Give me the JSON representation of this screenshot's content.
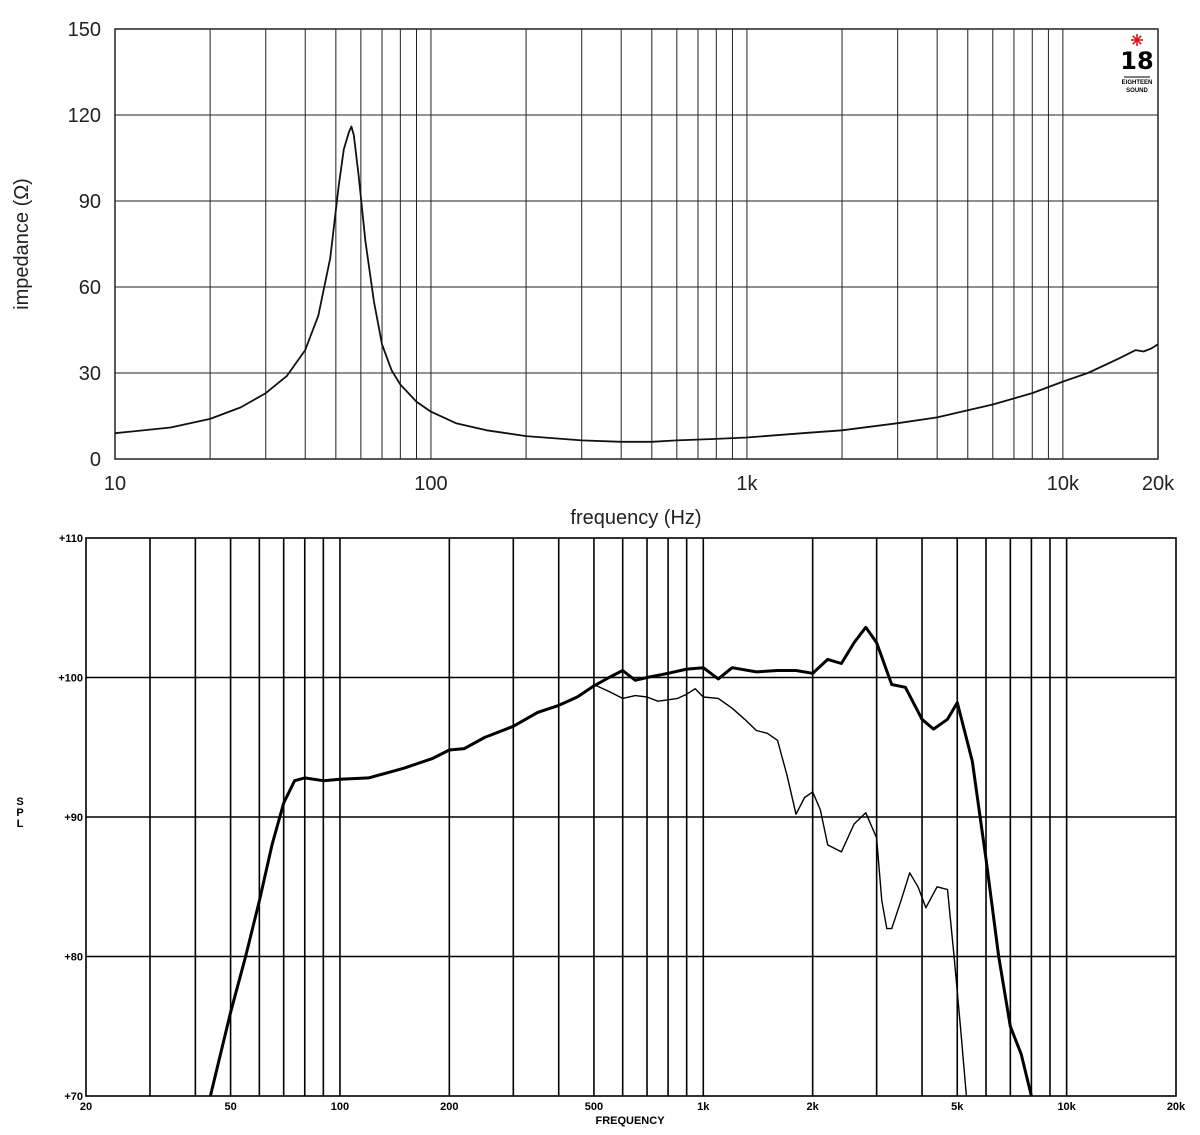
{
  "logo": {
    "text": "18",
    "sub1": "EIGHTEEN",
    "sub2": "SOUND",
    "star_color": "#e0141e"
  },
  "chart_data": [
    {
      "type": "line",
      "xscale": "log",
      "xlabel": "frequency (Hz)",
      "ylabel": "impedance (Ω)",
      "xlim": [
        10,
        20000
      ],
      "ylim": [
        0,
        150
      ],
      "grid": true,
      "xticks": [
        10,
        100,
        1000,
        10000,
        20000
      ],
      "xtick_labels": [
        "10",
        "100",
        "1k",
        "10k",
        "20k"
      ],
      "yticks": [
        0,
        30,
        60,
        90,
        120,
        150
      ],
      "ytick_labels": [
        "0",
        "30",
        "60",
        "90",
        "120",
        "150"
      ],
      "series": [
        {
          "color": "#111111",
          "x": [
            10,
            15,
            20,
            25,
            30,
            35,
            40,
            44,
            48,
            51,
            53,
            55,
            56,
            57,
            59,
            62,
            66,
            70,
            75,
            80,
            90,
            100,
            120,
            150,
            200,
            300,
            400,
            500,
            600,
            800,
            1000,
            1500,
            2000,
            3000,
            4000,
            5000,
            6000,
            8000,
            10000,
            12000,
            15000,
            17000,
            18000,
            19000,
            20000
          ],
          "y": [
            9,
            11,
            14,
            18,
            23,
            29,
            38,
            50,
            70,
            95,
            108,
            114,
            116,
            113,
            99,
            76,
            55,
            40,
            31,
            26,
            20,
            16.5,
            12.5,
            10,
            8,
            6.5,
            6,
            6,
            6.5,
            7,
            7.5,
            9,
            10,
            12.5,
            14.5,
            17,
            19,
            23,
            27,
            30,
            35,
            38,
            37.5,
            38.5,
            40
          ]
        }
      ]
    },
    {
      "type": "line",
      "xscale": "log",
      "xlabel": "FREQUENCY",
      "ylabel": "SPL",
      "xlim": [
        20,
        20000
      ],
      "ylim": [
        70,
        110
      ],
      "grid": true,
      "xticks": [
        20,
        50,
        100,
        200,
        500,
        1000,
        2000,
        5000,
        10000,
        20000
      ],
      "xtick_labels": [
        "20",
        "50",
        "100",
        "200",
        "500",
        "1k",
        "2k",
        "5k",
        "10k",
        "20k"
      ],
      "yticks": [
        70,
        80,
        90,
        100,
        110
      ],
      "ytick_labels": [
        "+70",
        "+80",
        "+90",
        "+100",
        "+110"
      ],
      "series": [
        {
          "color": "#000000",
          "weight": "bold",
          "x": [
            44,
            50,
            55,
            60,
            65,
            70,
            75,
            80,
            90,
            100,
            120,
            150,
            180,
            200,
            220,
            250,
            300,
            350,
            400,
            450,
            500,
            550,
            600,
            650,
            700,
            800,
            900,
            1000,
            1100,
            1200,
            1400,
            1600,
            1800,
            2000,
            2200,
            2400,
            2600,
            2800,
            3000,
            3300,
            3600,
            4000,
            4300,
            4700,
            5000,
            5500,
            6000,
            6500,
            7000,
            7500,
            8000
          ],
          "y": [
            70,
            76,
            80,
            84,
            88,
            91,
            92.6,
            92.8,
            92.6,
            92.7,
            92.8,
            93.5,
            94.2,
            94.8,
            94.9,
            95.7,
            96.5,
            97.5,
            98,
            98.6,
            99.4,
            100,
            100.5,
            99.8,
            100,
            100.3,
            100.6,
            100.7,
            99.9,
            100.7,
            100.4,
            100.5,
            100.5,
            100.3,
            101.3,
            101,
            102.5,
            103.6,
            102.5,
            99.5,
            99.3,
            97,
            96.3,
            97,
            98.2,
            94,
            87,
            80,
            75,
            73,
            70
          ]
        },
        {
          "color": "#000000",
          "weight": "normal",
          "x": [
            500,
            550,
            600,
            650,
            700,
            750,
            800,
            850,
            900,
            950,
            1000,
            1100,
            1200,
            1300,
            1400,
            1500,
            1600,
            1700,
            1800,
            1900,
            2000,
            2100,
            2200,
            2400,
            2600,
            2800,
            3000,
            3100,
            3200,
            3300,
            3500,
            3700,
            3900,
            4100,
            4400,
            4700,
            4900,
            5100,
            5300
          ],
          "y": [
            99.5,
            99,
            98.5,
            98.7,
            98.6,
            98.3,
            98.4,
            98.5,
            98.8,
            99.2,
            98.6,
            98.5,
            97.8,
            97,
            96.2,
            96,
            95.5,
            93,
            90.2,
            91.4,
            91.8,
            90.5,
            88,
            87.5,
            89.5,
            90.3,
            88.5,
            84,
            82,
            82,
            84,
            86,
            85,
            83.5,
            85,
            84.8,
            80,
            75,
            70
          ]
        }
      ]
    }
  ]
}
